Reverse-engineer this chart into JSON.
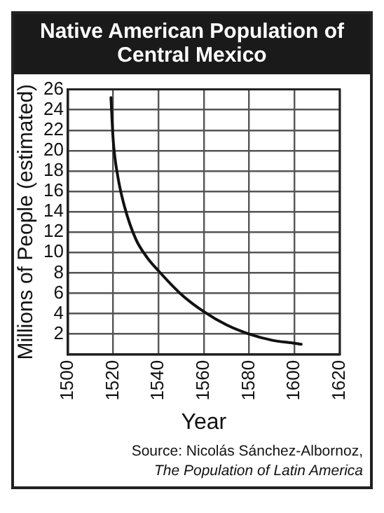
{
  "chart_data": {
    "type": "line",
    "title": "Native American Population of Central Mexico",
    "xlabel": "Year",
    "ylabel": "Millions of People (estimated)",
    "annotations": [
      "Source: Nicolás Sánchez-Albornoz,",
      "The Population of Latin America"
    ],
    "series": [
      {
        "color": "#111111",
        "x": [
          1519,
          1520,
          1522,
          1525,
          1530,
          1535,
          1540,
          1550,
          1560,
          1570,
          1580,
          1590,
          1600,
          1603
        ],
        "values": [
          25.2,
          21,
          17.5,
          14.5,
          11.3,
          9.5,
          8.2,
          5.9,
          4.2,
          2.9,
          2.0,
          1.4,
          1.1,
          1.0
        ]
      }
    ],
    "xlim": [
      1500,
      1620
    ],
    "xticks": [
      1500,
      1520,
      1540,
      1560,
      1580,
      1600,
      1620
    ],
    "ylim": [
      0,
      26
    ],
    "yticks": [
      {
        "value": 0,
        "label": null
      },
      2,
      4,
      6,
      8,
      10,
      12,
      14,
      16,
      18,
      20,
      22,
      24,
      26
    ],
    "grid": true,
    "legend": false,
    "marker": "none",
    "line_style": "solid"
  }
}
